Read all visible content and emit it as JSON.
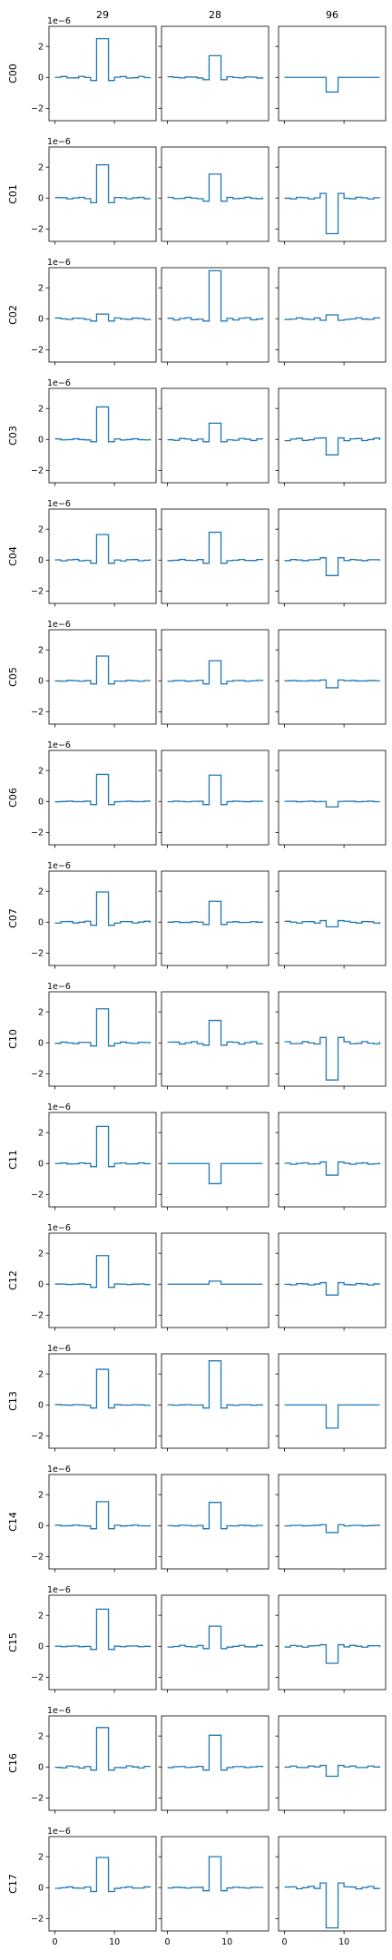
{
  "figure": {
    "columns": [
      "29",
      "28",
      "96"
    ],
    "rows": [
      "C00",
      "C01",
      "C02",
      "C03",
      "C04",
      "C05",
      "C06",
      "C07",
      "C10",
      "C11",
      "C12",
      "C13",
      "C14",
      "C15",
      "C16",
      "C17"
    ],
    "offset_text": "1e−6",
    "line_color": "#1f77b4"
  },
  "chart_data": {
    "type": "line",
    "style": "step",
    "grid": false,
    "sharey": true,
    "sharex": true,
    "xlim": [
      -1,
      17
    ],
    "ylim": [
      -2.8,
      3.3
    ],
    "x_ticks": [
      0,
      10
    ],
    "y_ticks": [
      -2,
      0,
      2
    ],
    "y_tick_labels": [
      "−2",
      "0",
      "2"
    ],
    "y_scale_text": "1e−6",
    "baseline_x": [
      0,
      16
    ],
    "spike_x": [
      7,
      9
    ],
    "panels": [
      {
        "row": "C00",
        "col": "29",
        "peak": 2.5,
        "side": -0.2,
        "wiggle": 0.06
      },
      {
        "row": "C00",
        "col": "28",
        "peak": 1.4,
        "side": -0.15,
        "wiggle": 0.04
      },
      {
        "row": "C00",
        "col": "96",
        "peak": -0.95,
        "side": 0.0,
        "wiggle": 0.0
      },
      {
        "row": "C01",
        "col": "29",
        "peak": 2.15,
        "side": -0.3,
        "wiggle": 0.05
      },
      {
        "row": "C01",
        "col": "28",
        "peak": 1.55,
        "side": -0.2,
        "wiggle": 0.05
      },
      {
        "row": "C01",
        "col": "96",
        "peak": -2.3,
        "side": 0.3,
        "wiggle": 0.06
      },
      {
        "row": "C02",
        "col": "29",
        "peak": 0.3,
        "side": -0.15,
        "wiggle": 0.05
      },
      {
        "row": "C02",
        "col": "28",
        "peak": 3.1,
        "side": -0.15,
        "wiggle": 0.08
      },
      {
        "row": "C02",
        "col": "96",
        "peak": 0.25,
        "side": -0.1,
        "wiggle": 0.06
      },
      {
        "row": "C03",
        "col": "29",
        "peak": 2.1,
        "side": -0.15,
        "wiggle": 0.04
      },
      {
        "row": "C03",
        "col": "28",
        "peak": 1.05,
        "side": -0.15,
        "wiggle": 0.07
      },
      {
        "row": "C03",
        "col": "96",
        "peak": -1.0,
        "side": 0.1,
        "wiggle": 0.08
      },
      {
        "row": "C04",
        "col": "29",
        "peak": 1.65,
        "side": -0.2,
        "wiggle": 0.05
      },
      {
        "row": "C04",
        "col": "28",
        "peak": 1.8,
        "side": -0.2,
        "wiggle": 0.04
      },
      {
        "row": "C04",
        "col": "96",
        "peak": -1.0,
        "side": 0.15,
        "wiggle": 0.04
      },
      {
        "row": "C05",
        "col": "29",
        "peak": 1.6,
        "side": -0.2,
        "wiggle": 0.03
      },
      {
        "row": "C05",
        "col": "28",
        "peak": 1.3,
        "side": -0.2,
        "wiggle": 0.03
      },
      {
        "row": "C05",
        "col": "96",
        "peak": -0.45,
        "side": 0.05,
        "wiggle": 0.02
      },
      {
        "row": "C06",
        "col": "29",
        "peak": 1.75,
        "side": -0.2,
        "wiggle": 0.02
      },
      {
        "row": "C06",
        "col": "28",
        "peak": 1.7,
        "side": -0.2,
        "wiggle": 0.02
      },
      {
        "row": "C06",
        "col": "96",
        "peak": -0.35,
        "side": 0.0,
        "wiggle": 0.02
      },
      {
        "row": "C07",
        "col": "29",
        "peak": 1.95,
        "side": -0.2,
        "wiggle": 0.06
      },
      {
        "row": "C07",
        "col": "28",
        "peak": 1.35,
        "side": -0.15,
        "wiggle": 0.03
      },
      {
        "row": "C07",
        "col": "96",
        "peak": -0.3,
        "side": 0.1,
        "wiggle": 0.06
      },
      {
        "row": "C10",
        "col": "29",
        "peak": 2.2,
        "side": -0.2,
        "wiggle": 0.05
      },
      {
        "row": "C10",
        "col": "28",
        "peak": 1.45,
        "side": -0.15,
        "wiggle": 0.08
      },
      {
        "row": "C10",
        "col": "96",
        "peak": -2.4,
        "side": 0.35,
        "wiggle": 0.08
      },
      {
        "row": "C11",
        "col": "29",
        "peak": 2.4,
        "side": -0.2,
        "wiggle": 0.04
      },
      {
        "row": "C11",
        "col": "28",
        "peak": -1.3,
        "side": 0.0,
        "wiggle": 0.0
      },
      {
        "row": "C11",
        "col": "96",
        "peak": -0.75,
        "side": 0.1,
        "wiggle": 0.05
      },
      {
        "row": "C12",
        "col": "29",
        "peak": 1.85,
        "side": -0.2,
        "wiggle": 0.02
      },
      {
        "row": "C12",
        "col": "28",
        "peak": 0.2,
        "side": 0.0,
        "wiggle": 0.0
      },
      {
        "row": "C12",
        "col": "96",
        "peak": -0.7,
        "side": 0.1,
        "wiggle": 0.05
      },
      {
        "row": "C13",
        "col": "29",
        "peak": 2.3,
        "side": -0.2,
        "wiggle": 0.02
      },
      {
        "row": "C13",
        "col": "28",
        "peak": 2.85,
        "side": -0.2,
        "wiggle": 0.02
      },
      {
        "row": "C13",
        "col": "96",
        "peak": -1.5,
        "side": 0.0,
        "wiggle": 0.0
      },
      {
        "row": "C14",
        "col": "29",
        "peak": 1.55,
        "side": -0.2,
        "wiggle": 0.03
      },
      {
        "row": "C14",
        "col": "28",
        "peak": 1.5,
        "side": -0.2,
        "wiggle": 0.03
      },
      {
        "row": "C14",
        "col": "96",
        "peak": -0.45,
        "side": 0.05,
        "wiggle": 0.02
      },
      {
        "row": "C15",
        "col": "29",
        "peak": 2.4,
        "side": -0.2,
        "wiggle": 0.03
      },
      {
        "row": "C15",
        "col": "28",
        "peak": 1.3,
        "side": -0.15,
        "wiggle": 0.06
      },
      {
        "row": "C15",
        "col": "96",
        "peak": -1.1,
        "side": 0.1,
        "wiggle": 0.06
      },
      {
        "row": "C16",
        "col": "29",
        "peak": 2.55,
        "side": -0.2,
        "wiggle": 0.07
      },
      {
        "row": "C16",
        "col": "28",
        "peak": 2.05,
        "side": -0.2,
        "wiggle": 0.04
      },
      {
        "row": "C16",
        "col": "96",
        "peak": -0.6,
        "side": 0.1,
        "wiggle": 0.06
      },
      {
        "row": "C17",
        "col": "29",
        "peak": 1.95,
        "side": -0.25,
        "wiggle": 0.05
      },
      {
        "row": "C17",
        "col": "28",
        "peak": 2.0,
        "side": -0.2,
        "wiggle": 0.03
      },
      {
        "row": "C17",
        "col": "96",
        "peak": -2.6,
        "side": 0.3,
        "wiggle": 0.08
      }
    ]
  }
}
